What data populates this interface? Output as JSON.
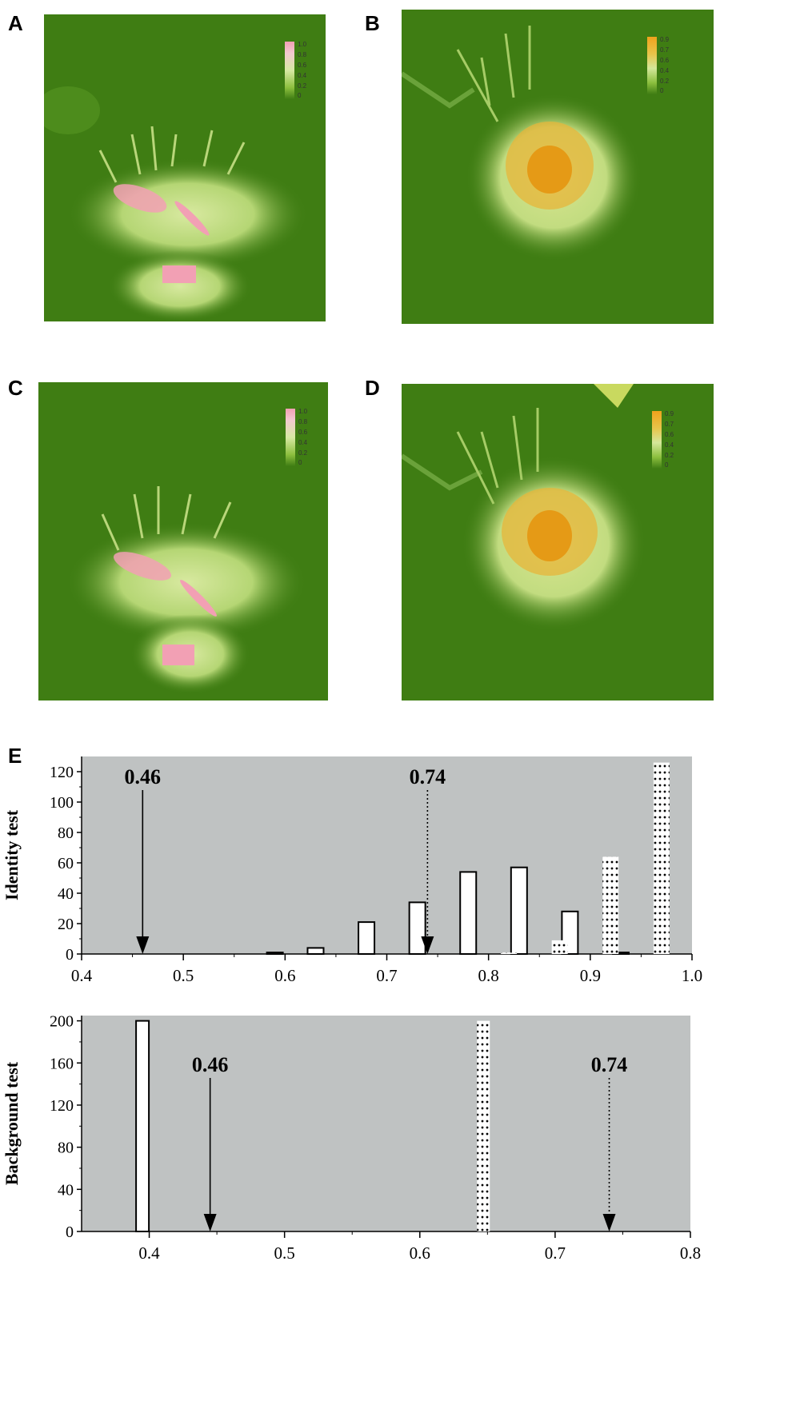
{
  "panels": {
    "A": {
      "letter": "A",
      "palette": "pink",
      "legend": [
        "1.0",
        "0.8",
        "0.6",
        "0.4",
        "0.2",
        "0"
      ]
    },
    "B": {
      "letter": "B",
      "palette": "orange",
      "legend": [
        "0.9",
        "0.7",
        "0.6",
        "0.4",
        "0.2",
        "0"
      ]
    },
    "C": {
      "letter": "C",
      "palette": "pink",
      "legend": [
        "1.0",
        "0.8",
        "0.6",
        "0.4",
        "0.2",
        "0"
      ]
    },
    "D": {
      "letter": "D",
      "palette": "orange",
      "legend": [
        "0.9",
        "0.7",
        "0.6",
        "0.4",
        "0.2",
        "0"
      ]
    }
  },
  "colors": {
    "map_green": "#3f7d13",
    "map_light": "#c9e08a",
    "map_mid": "#8cbf3e",
    "pink": "#f2a0b4",
    "orange": "#f0a21c",
    "plot_bg": "#bfc2c2"
  },
  "panel_e_letter": "E",
  "chart_data": [
    {
      "type": "bar",
      "ylabel": "Identity test",
      "xlim": [
        0.4,
        1.0
      ],
      "ylim": [
        0,
        130
      ],
      "xticks": [
        "0.4",
        "0.5",
        "0.6",
        "0.7",
        "0.8",
        "0.9",
        "1.0"
      ],
      "yticks": [
        "0",
        "20",
        "40",
        "60",
        "80",
        "100",
        "120"
      ],
      "grid": false,
      "series": [
        {
          "style": "solid",
          "x": [
            0.59,
            0.63,
            0.68,
            0.73,
            0.78,
            0.83,
            0.88,
            0.93
          ],
          "values": [
            1,
            4,
            21,
            34,
            54,
            57,
            28,
            1
          ]
        },
        {
          "style": "dotted",
          "x": [
            0.82,
            0.87,
            0.92,
            0.97
          ],
          "values": [
            1,
            9,
            64,
            126
          ]
        }
      ],
      "annotations": [
        {
          "label": "0.46",
          "x": 0.46,
          "line": "solid"
        },
        {
          "label": "0.74",
          "x": 0.74,
          "line": "dotted"
        }
      ]
    },
    {
      "type": "bar",
      "ylabel": "Background test",
      "xlim": [
        0.35,
        0.8
      ],
      "ylim": [
        0,
        205
      ],
      "xticks": [
        "0.4",
        "0.5",
        "0.6",
        "0.7",
        "0.8"
      ],
      "yticks": [
        "0",
        "40",
        "80",
        "120",
        "160",
        "200"
      ],
      "grid": false,
      "series": [
        {
          "style": "solid",
          "x": [
            0.395
          ],
          "values": [
            200
          ]
        },
        {
          "style": "dotted",
          "x": [
            0.647
          ],
          "values": [
            200
          ]
        }
      ],
      "annotations": [
        {
          "label": "0.46",
          "x": 0.445,
          "line": "solid"
        },
        {
          "label": "0.74",
          "x": 0.74,
          "line": "dotted"
        }
      ]
    }
  ]
}
